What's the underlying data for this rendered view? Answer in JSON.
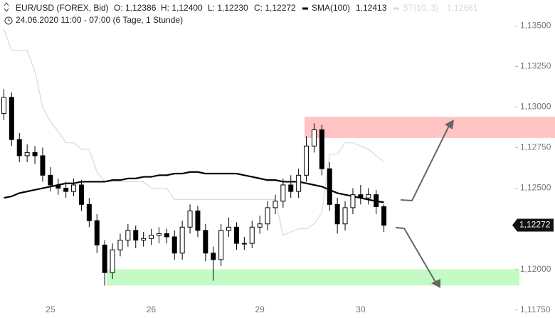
{
  "chart_data": {
    "type": "candlestick",
    "title": "EUR/USD (FOREX, Bid)",
    "subtitle": "24.06.2020 11:00 - 07:00  (6 Tage, 1 Stunde)",
    "header": [
      "O: 1,12386",
      "H: 1,12400",
      "L: 1,12230",
      "C: 1,12272"
    ],
    "categories": [
      null,
      null,
      null,
      null,
      null,
      null,
      "25",
      null,
      null,
      null,
      null,
      null,
      null,
      null,
      null,
      null,
      null,
      null,
      null,
      "26",
      null,
      null,
      null,
      null,
      null,
      null,
      null,
      null,
      null,
      null,
      null,
      null,
      null,
      "29",
      null,
      null,
      null,
      null,
      null,
      null,
      null,
      null,
      null,
      null,
      null,
      null,
      "30",
      null,
      null,
      null
    ],
    "open": [
      1.1296,
      1.1306,
      1.128,
      1.127,
      1.1272,
      1.127,
      1.1258,
      1.1252,
      1.125,
      1.1248,
      1.1252,
      1.124,
      1.123,
      1.1215,
      1.1198,
      1.1212,
      1.1218,
      1.1224,
      1.1218,
      1.1219,
      1.1221,
      1.1222,
      1.122,
      1.121,
      1.1226,
      1.1236,
      1.1224,
      1.121,
      1.1206,
      1.1224,
      1.1226,
      1.1216,
      1.1216,
      1.1226,
      1.1228,
      1.1238,
      1.1242,
      1.1252,
      1.1248,
      1.1258,
      1.1276,
      1.1286,
      1.1262,
      1.124,
      1.1228,
      1.1238,
      1.1246,
      1.1244,
      1.1246,
      1.12386
    ],
    "high": [
      1.1311,
      1.1309,
      1.1284,
      1.1277,
      1.1276,
      1.1275,
      1.1263,
      1.1256,
      1.1254,
      1.1256,
      1.1255,
      1.1244,
      1.1234,
      1.1218,
      1.1216,
      1.1222,
      1.1228,
      1.1227,
      1.1223,
      1.1225,
      1.1226,
      1.1225,
      1.1224,
      1.123,
      1.124,
      1.1239,
      1.1228,
      1.1214,
      1.1228,
      1.1232,
      1.1229,
      1.122,
      1.123,
      1.1233,
      1.1242,
      1.1246,
      1.1256,
      1.1258,
      1.1262,
      1.1282,
      1.129,
      1.1289,
      1.1266,
      1.1244,
      1.1242,
      1.125,
      1.1252,
      1.125,
      1.1249,
      1.124
    ],
    "low": [
      1.1292,
      1.1276,
      1.1266,
      1.1266,
      1.1265,
      1.1254,
      1.1248,
      1.1246,
      1.1244,
      1.1245,
      1.1236,
      1.1226,
      1.121,
      1.119,
      1.1194,
      1.1208,
      1.1214,
      1.1213,
      1.1214,
      1.1215,
      1.1216,
      1.1216,
      1.1206,
      1.1206,
      1.1222,
      1.122,
      1.1205,
      1.1193,
      1.1202,
      1.122,
      1.1212,
      1.1212,
      1.1213,
      1.1222,
      1.1224,
      1.1234,
      1.1238,
      1.1244,
      1.1244,
      1.1254,
      1.1272,
      1.1258,
      1.1236,
      1.1222,
      1.1224,
      1.1234,
      1.124,
      1.124,
      1.1234,
      1.1223
    ],
    "close": [
      1.1306,
      1.128,
      1.127,
      1.1272,
      1.127,
      1.1258,
      1.1252,
      1.125,
      1.1248,
      1.1252,
      1.124,
      1.123,
      1.1215,
      1.1198,
      1.1212,
      1.1218,
      1.1224,
      1.1218,
      1.1219,
      1.1221,
      1.1222,
      1.122,
      1.121,
      1.1226,
      1.1236,
      1.1224,
      1.121,
      1.1206,
      1.1224,
      1.1226,
      1.1216,
      1.1216,
      1.1226,
      1.1228,
      1.1238,
      1.1242,
      1.1252,
      1.1248,
      1.1258,
      1.1276,
      1.1286,
      1.1262,
      1.124,
      1.1228,
      1.1238,
      1.1246,
      1.1244,
      1.1246,
      1.12386,
      1.12272
    ],
    "up_color": "#ffffff",
    "down_color": "#000000",
    "series": [
      {
        "name": "SMA(100)",
        "label": "1,12413",
        "color": "#000000",
        "width": 2.2,
        "values": [
          1.1244,
          1.1245,
          1.1247,
          1.1248,
          1.1249,
          1.125,
          1.1251,
          1.1252,
          1.1253,
          1.1253,
          1.1254,
          1.1254,
          1.1254,
          1.1254,
          1.1255,
          1.1255,
          1.1256,
          1.1256,
          1.1257,
          1.1257,
          1.1258,
          1.1258,
          1.1259,
          1.1259,
          1.126,
          1.126,
          1.1259,
          1.1259,
          1.1259,
          1.1259,
          1.1259,
          1.1258,
          1.1257,
          1.1256,
          1.1255,
          1.1255,
          1.1254,
          1.1254,
          1.1254,
          1.1253,
          1.1252,
          1.1251,
          1.1249,
          1.1247,
          1.1246,
          1.1245,
          1.1244,
          1.1243,
          1.1242,
          1.12413
        ]
      },
      {
        "name": "ST(10, 3)",
        "label": "1,12661",
        "color": "#d9d9d9",
        "width": 1.2,
        "values": [
          1.1348,
          1.1335,
          1.1335,
          1.1335,
          1.1322,
          1.13,
          1.1291,
          1.1285,
          1.1278,
          1.1278,
          1.1274,
          1.1274,
          1.126,
          1.1254,
          1.1254,
          1.1254,
          1.1254,
          1.1254,
          1.1254,
          1.125,
          1.125,
          1.125,
          1.1243,
          1.1243,
          1.1243,
          1.1243,
          1.1243,
          1.1243,
          1.1243,
          1.1243,
          1.1243,
          1.1243,
          1.1243,
          1.1243,
          1.1243,
          1.1243,
          1.1221,
          1.1223,
          1.1225,
          1.1225,
          1.1228,
          1.1235,
          1.1271,
          1.1271,
          1.1278,
          1.1278,
          1.1276,
          1.1274,
          1.127,
          1.12661
        ]
      }
    ],
    "zones": [
      {
        "values": [
          1.1281,
          1.1294
        ],
        "color": "#ffc4c4"
      },
      {
        "values": [
          1.119,
          1.12
        ],
        "color": "#c4fbc4"
      }
    ],
    "last_label": "1,12272",
    "ylim": [
      1.117,
      1.1366
    ],
    "yticks": [
      {
        "value": 1.135,
        "label": "1,13500"
      },
      {
        "value": 1.1325,
        "label": "1,13250"
      },
      {
        "value": 1.13,
        "label": "1,13000"
      },
      {
        "value": 1.1275,
        "label": "1,12750"
      },
      {
        "value": 1.125,
        "label": "1,12500"
      },
      {
        "value": 1.1225,
        "label": "1,12250"
      },
      {
        "value": 1.12,
        "label": "1,12000"
      },
      {
        "value": 1.1175,
        "label": "1,11750"
      }
    ],
    "grid": false
  }
}
